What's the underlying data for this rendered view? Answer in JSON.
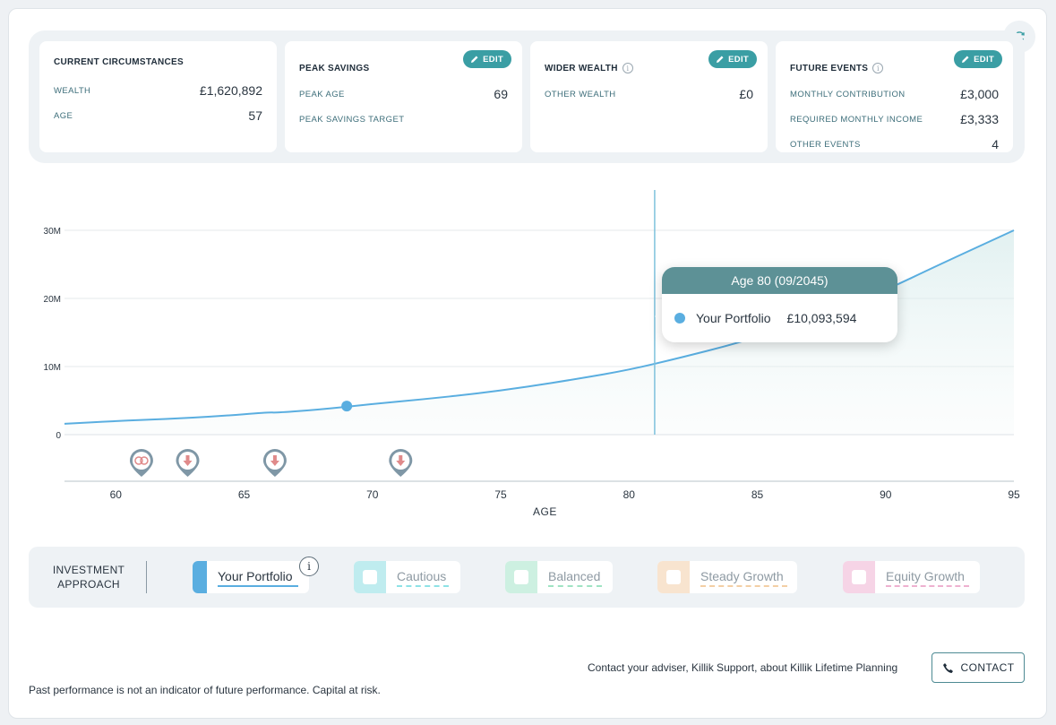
{
  "summary": {
    "current": {
      "title": "CURRENT CIRCUMSTANCES",
      "rows": [
        {
          "label": "WEALTH",
          "value": "£1,620,892"
        },
        {
          "label": "AGE",
          "value": "57"
        }
      ]
    },
    "peak": {
      "title": "PEAK SAVINGS",
      "edit_label": "EDIT",
      "rows": [
        {
          "label": "PEAK AGE",
          "value": "69"
        },
        {
          "label": "PEAK SAVINGS TARGET",
          "value": ""
        }
      ]
    },
    "wider": {
      "title": "WIDER WEALTH",
      "edit_label": "EDIT",
      "info_glyph": "i",
      "rows": [
        {
          "label": "OTHER WEALTH",
          "value": "£0"
        }
      ]
    },
    "future": {
      "title": "FUTURE EVENTS",
      "edit_label": "EDIT",
      "info_glyph": "i",
      "rows": [
        {
          "label": "MONTHLY CONTRIBUTION",
          "value": "£3,000"
        },
        {
          "label": "REQUIRED MONTHLY INCOME",
          "value": "£3,333"
        },
        {
          "label": "OTHER EVENTS",
          "value": "4"
        }
      ]
    }
  },
  "chart_data": {
    "type": "area",
    "xlabel": "AGE",
    "x_ticks": [
      60,
      65,
      70,
      75,
      80,
      85,
      90,
      95
    ],
    "y_ticks": [
      0,
      10,
      20,
      30
    ],
    "y_tick_labels": [
      "0",
      "10M",
      "20M",
      "30M"
    ],
    "xlim": [
      58,
      95
    ],
    "ylim": [
      0,
      30
    ],
    "y_unit": "millions £",
    "grid": true,
    "series": [
      {
        "name": "Your Portfolio",
        "color": "#5aaee0",
        "x": [
          58,
          60,
          62,
          64,
          66,
          66.2,
          68,
          70,
          72,
          74,
          76,
          78,
          80,
          82,
          84,
          86,
          88,
          90,
          92,
          95
        ],
        "y": [
          1.6,
          2.0,
          2.3,
          2.7,
          3.3,
          3.2,
          3.7,
          4.5,
          5.2,
          6.0,
          7.0,
          8.2,
          9.5,
          11.3,
          13.2,
          15.5,
          18.2,
          21.2,
          24.8,
          30.0
        ]
      }
    ],
    "peak_marker": {
      "x": 69,
      "y": 4.2
    },
    "crosshair_x": 81,
    "event_markers": [
      {
        "x": 61,
        "icon": "rings-icon"
      },
      {
        "x": 62.8,
        "icon": "arrow-down-icon"
      },
      {
        "x": 66.2,
        "icon": "arrow-down-icon"
      },
      {
        "x": 71.1,
        "icon": "arrow-down-icon"
      }
    ]
  },
  "tooltip": {
    "title": "Age 80 (09/2045)",
    "series": "Your Portfolio",
    "value": "£10,093,594"
  },
  "approach": {
    "label_line1": "INVESTMENT",
    "label_line2": "APPROACH",
    "info_glyph": "i",
    "options": [
      {
        "name": "Your Portfolio",
        "color": "#5aaee0",
        "selected": true
      },
      {
        "name": "Cautious",
        "color": "#bfecef",
        "selected": false
      },
      {
        "name": "Balanced",
        "color": "#cdf0e1",
        "selected": false
      },
      {
        "name": "Steady Growth",
        "color": "#f8e4cf",
        "selected": false
      },
      {
        "name": "Equity Growth",
        "color": "#f6d4e6",
        "selected": false
      }
    ]
  },
  "footer": {
    "contact_text": "Contact your adviser, Killik Support, about Killik Lifetime Planning",
    "contact_button": "CONTACT",
    "disclaimer": "Past performance is not an indicator of future performance. Capital at risk."
  },
  "colors": {
    "accent": "#3a9ea4",
    "tooltip_header": "#5d9196",
    "line": "#5aaee0",
    "marker": "#7f97a6",
    "marker_icon": "#e08a8a"
  }
}
